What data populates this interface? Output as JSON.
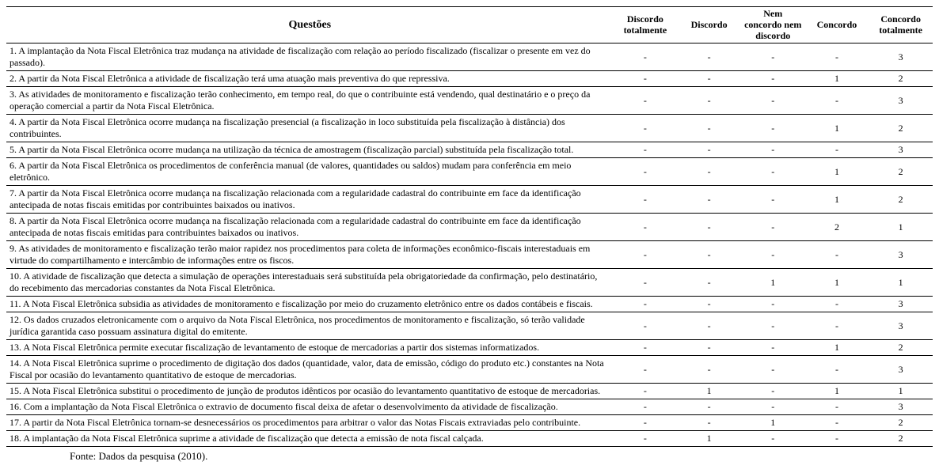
{
  "table": {
    "headers": {
      "questoes": "Questões",
      "c1": "Discordo totalmente",
      "c2": "Discordo",
      "c3": "Nem concordo nem discordo",
      "c4": "Concordo",
      "c5": "Concordo totalmente"
    },
    "rows": [
      {
        "q": "1.   A implantação da Nota Fiscal Eletrônica traz mudança na atividade de fiscalização com relação ao período fiscalizado (fiscalizar o presente em vez do passado).",
        "v": [
          "-",
          "-",
          "-",
          "-",
          "3"
        ]
      },
      {
        "q": "2.   A partir da Nota Fiscal Eletrônica a atividade de fiscalização terá uma atuação mais preventiva do que repressiva.",
        "v": [
          "-",
          "-",
          "-",
          "1",
          "2"
        ]
      },
      {
        "q": "3.   As atividades de monitoramento e fiscalização terão conhecimento, em tempo real, do que o contribuinte está vendendo, qual destinatário e o preço da operação comercial a partir da Nota Fiscal Eletrônica.",
        "v": [
          "-",
          "-",
          "-",
          "-",
          "3"
        ]
      },
      {
        "q": "4.   A partir da Nota Fiscal Eletrônica ocorre mudança na fiscalização presencial (a fiscalização in loco substituída pela fiscalização à distância) dos contribuintes.",
        "v": [
          "-",
          "-",
          "-",
          "1",
          "2"
        ]
      },
      {
        "q": "5.   A partir da Nota Fiscal Eletrônica ocorre mudança na utilização da técnica de amostragem (fiscalização parcial) substituída pela fiscalização total.",
        "v": [
          "-",
          "-",
          "-",
          "-",
          "3"
        ]
      },
      {
        "q": "6.   A partir da Nota Fiscal Eletrônica os procedimentos de conferência manual (de valores, quantidades ou saldos) mudam para conferência em meio eletrônico.",
        "v": [
          "-",
          "-",
          "-",
          "1",
          "2"
        ]
      },
      {
        "q": "7.   A partir da Nota Fiscal Eletrônica ocorre mudança na fiscalização relacionada com a regularidade cadastral do contribuinte em face da identificação antecipada de notas fiscais emitidas por contribuintes baixados ou inativos.",
        "v": [
          "-",
          "-",
          "-",
          "1",
          "2"
        ]
      },
      {
        "q": "8.   A partir da Nota Fiscal Eletrônica ocorre mudança na fiscalização relacionada com a regularidade cadastral do contribuinte em face da identificação antecipada de notas fiscais emitidas para contribuintes baixados ou inativos.",
        "v": [
          "-",
          "-",
          "-",
          "2",
          "1"
        ]
      },
      {
        "q": "9.   As atividades de monitoramento e fiscalização terão maior rapidez nos procedimentos para coleta de informações econômico-fiscais interestaduais em virtude do compartilhamento e intercâmbio de informações entre os fiscos.",
        "v": [
          "-",
          "-",
          "-",
          "-",
          "3"
        ]
      },
      {
        "q": "10.  A atividade de fiscalização que detecta a simulação de operações interestaduais será substituída pela obrigatoriedade da confirmação, pelo destinatário, do recebimento das mercadorias constantes da Nota Fiscal Eletrônica.",
        "v": [
          "-",
          "-",
          "1",
          "1",
          "1"
        ]
      },
      {
        "q": "11.  A Nota Fiscal Eletrônica subsidia as atividades de monitoramento e fiscalização por meio do cruzamento eletrônico entre os dados contábeis e fiscais.",
        "v": [
          "-",
          "-",
          "-",
          "-",
          "3"
        ]
      },
      {
        "q": "12.  Os dados cruzados eletronicamente com o arquivo da Nota Fiscal Eletrônica, nos procedimentos de monitoramento e fiscalização, só terão validade jurídica garantida caso possuam assinatura digital do emitente.",
        "v": [
          "-",
          "-",
          "-",
          "-",
          "3"
        ]
      },
      {
        "q": "13.  A Nota Fiscal Eletrônica permite executar fiscalização de levantamento de estoque de mercadorias a partir dos sistemas informatizados.",
        "v": [
          "-",
          "-",
          "-",
          "1",
          "2"
        ]
      },
      {
        "q": "14.  A Nota Fiscal Eletrônica suprime o procedimento de digitação dos dados (quantidade, valor, data de emissão, código do produto etc.) constantes na Nota Fiscal por ocasião do levantamento quantitativo de estoque de mercadorias.",
        "v": [
          "-",
          "-",
          "-",
          "-",
          "3"
        ]
      },
      {
        "q": "15.  A Nota Fiscal Eletrônica substitui o procedimento de junção de produtos idênticos por ocasião do levantamento quantitativo de estoque de mercadorias.",
        "v": [
          "-",
          "1",
          "-",
          "1",
          "1"
        ]
      },
      {
        "q": "16.  Com a implantação da Nota Fiscal Eletrônica o extravio de documento fiscal deixa de afetar o desenvolvimento da atividade de fiscalização.",
        "v": [
          "-",
          "-",
          "-",
          "-",
          "3"
        ]
      },
      {
        "q": "17.  A partir da Nota Fiscal Eletrônica tornam-se desnecessários os procedimentos para arbitrar o valor das Notas Fiscais extraviadas pelo contribuinte.",
        "v": [
          "-",
          "-",
          "1",
          "-",
          "2"
        ]
      },
      {
        "q": "18.  A implantação da Nota Fiscal Eletrônica suprime a atividade de fiscalização que detecta a emissão de nota fiscal calçada.",
        "v": [
          "-",
          "1",
          "-",
          "-",
          "2"
        ]
      }
    ],
    "source": "Fonte: Dados da pesquisa (2010)."
  }
}
